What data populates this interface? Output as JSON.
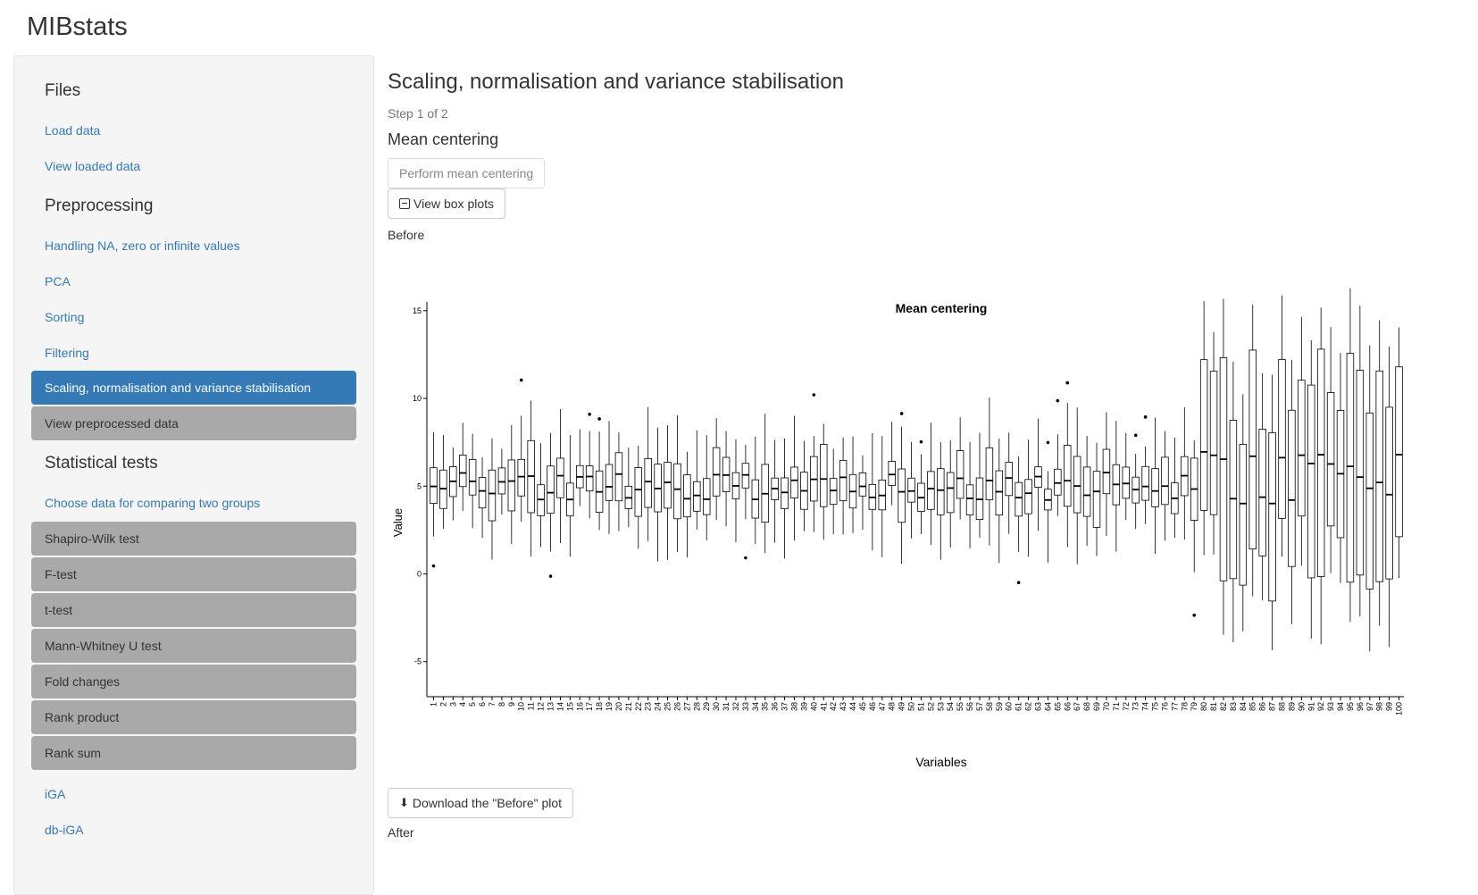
{
  "app": {
    "title": "MIBstats"
  },
  "sidebar": {
    "sections": {
      "files": "Files",
      "preprocessing": "Preprocessing",
      "statistical_tests": "Statistical tests"
    },
    "items": {
      "load_data": "Load data",
      "view_loaded_data": "View loaded data",
      "handling_na": "Handling NA, zero or infinite values",
      "pca": "PCA",
      "sorting": "Sorting",
      "filtering": "Filtering",
      "scaling": "Scaling, normalisation and variance stabilisation",
      "view_preprocessed": "View preprocessed data",
      "choose_data": "Choose data for comparing two groups",
      "shapiro": "Shapiro-Wilk test",
      "ftest": "F-test",
      "ttest": "t-test",
      "mannwhitney": "Mann-Whitney U test",
      "foldchanges": "Fold changes",
      "rankproduct": "Rank product",
      "ranksum": "Rank sum",
      "iga": "iGA",
      "dbiga": "db-iGA"
    }
  },
  "main": {
    "title": "Scaling, normalisation and variance stabilisation",
    "step": "Step 1 of 2",
    "subtitle": "Mean centering",
    "perform_button": "Perform mean centering",
    "view_button": "View box plots",
    "before_label": "Before",
    "download_button": "Download the \"Before\" plot",
    "after_label": "After"
  },
  "colors": {
    "link": "#337ab7",
    "active": "#337ab7",
    "pill": "#a9a9a9"
  },
  "chart_data": {
    "type": "boxplot",
    "title": "Mean centering",
    "xlabel": "Variables",
    "ylabel": "Value",
    "ylim": [
      -7,
      15.5
    ],
    "yticks": [
      -5,
      0,
      5,
      10,
      15
    ],
    "categories": [
      "1",
      "2",
      "3",
      "4",
      "5",
      "6",
      "7",
      "8",
      "9",
      "10",
      "11",
      "12",
      "13",
      "14",
      "15",
      "16",
      "17",
      "18",
      "19",
      "20",
      "21",
      "22",
      "23",
      "24",
      "25",
      "26",
      "27",
      "28",
      "29",
      "30",
      "31",
      "32",
      "33",
      "34",
      "35",
      "36",
      "37",
      "38",
      "39",
      "40",
      "41",
      "42",
      "43",
      "44",
      "45",
      "46",
      "47",
      "48",
      "49",
      "50",
      "51",
      "52",
      "53",
      "54",
      "55",
      "56",
      "57",
      "58",
      "59",
      "60",
      "61",
      "62",
      "63",
      "64",
      "65",
      "66",
      "67",
      "68",
      "69",
      "70",
      "71",
      "72",
      "73",
      "74",
      "75",
      "76",
      "77",
      "78",
      "79",
      "80",
      "81",
      "82",
      "83",
      "84",
      "85",
      "86",
      "87",
      "88",
      "89",
      "90",
      "91",
      "92",
      "93",
      "94",
      "95",
      "96",
      "97",
      "98",
      "99",
      "100"
    ],
    "grid": false
  }
}
